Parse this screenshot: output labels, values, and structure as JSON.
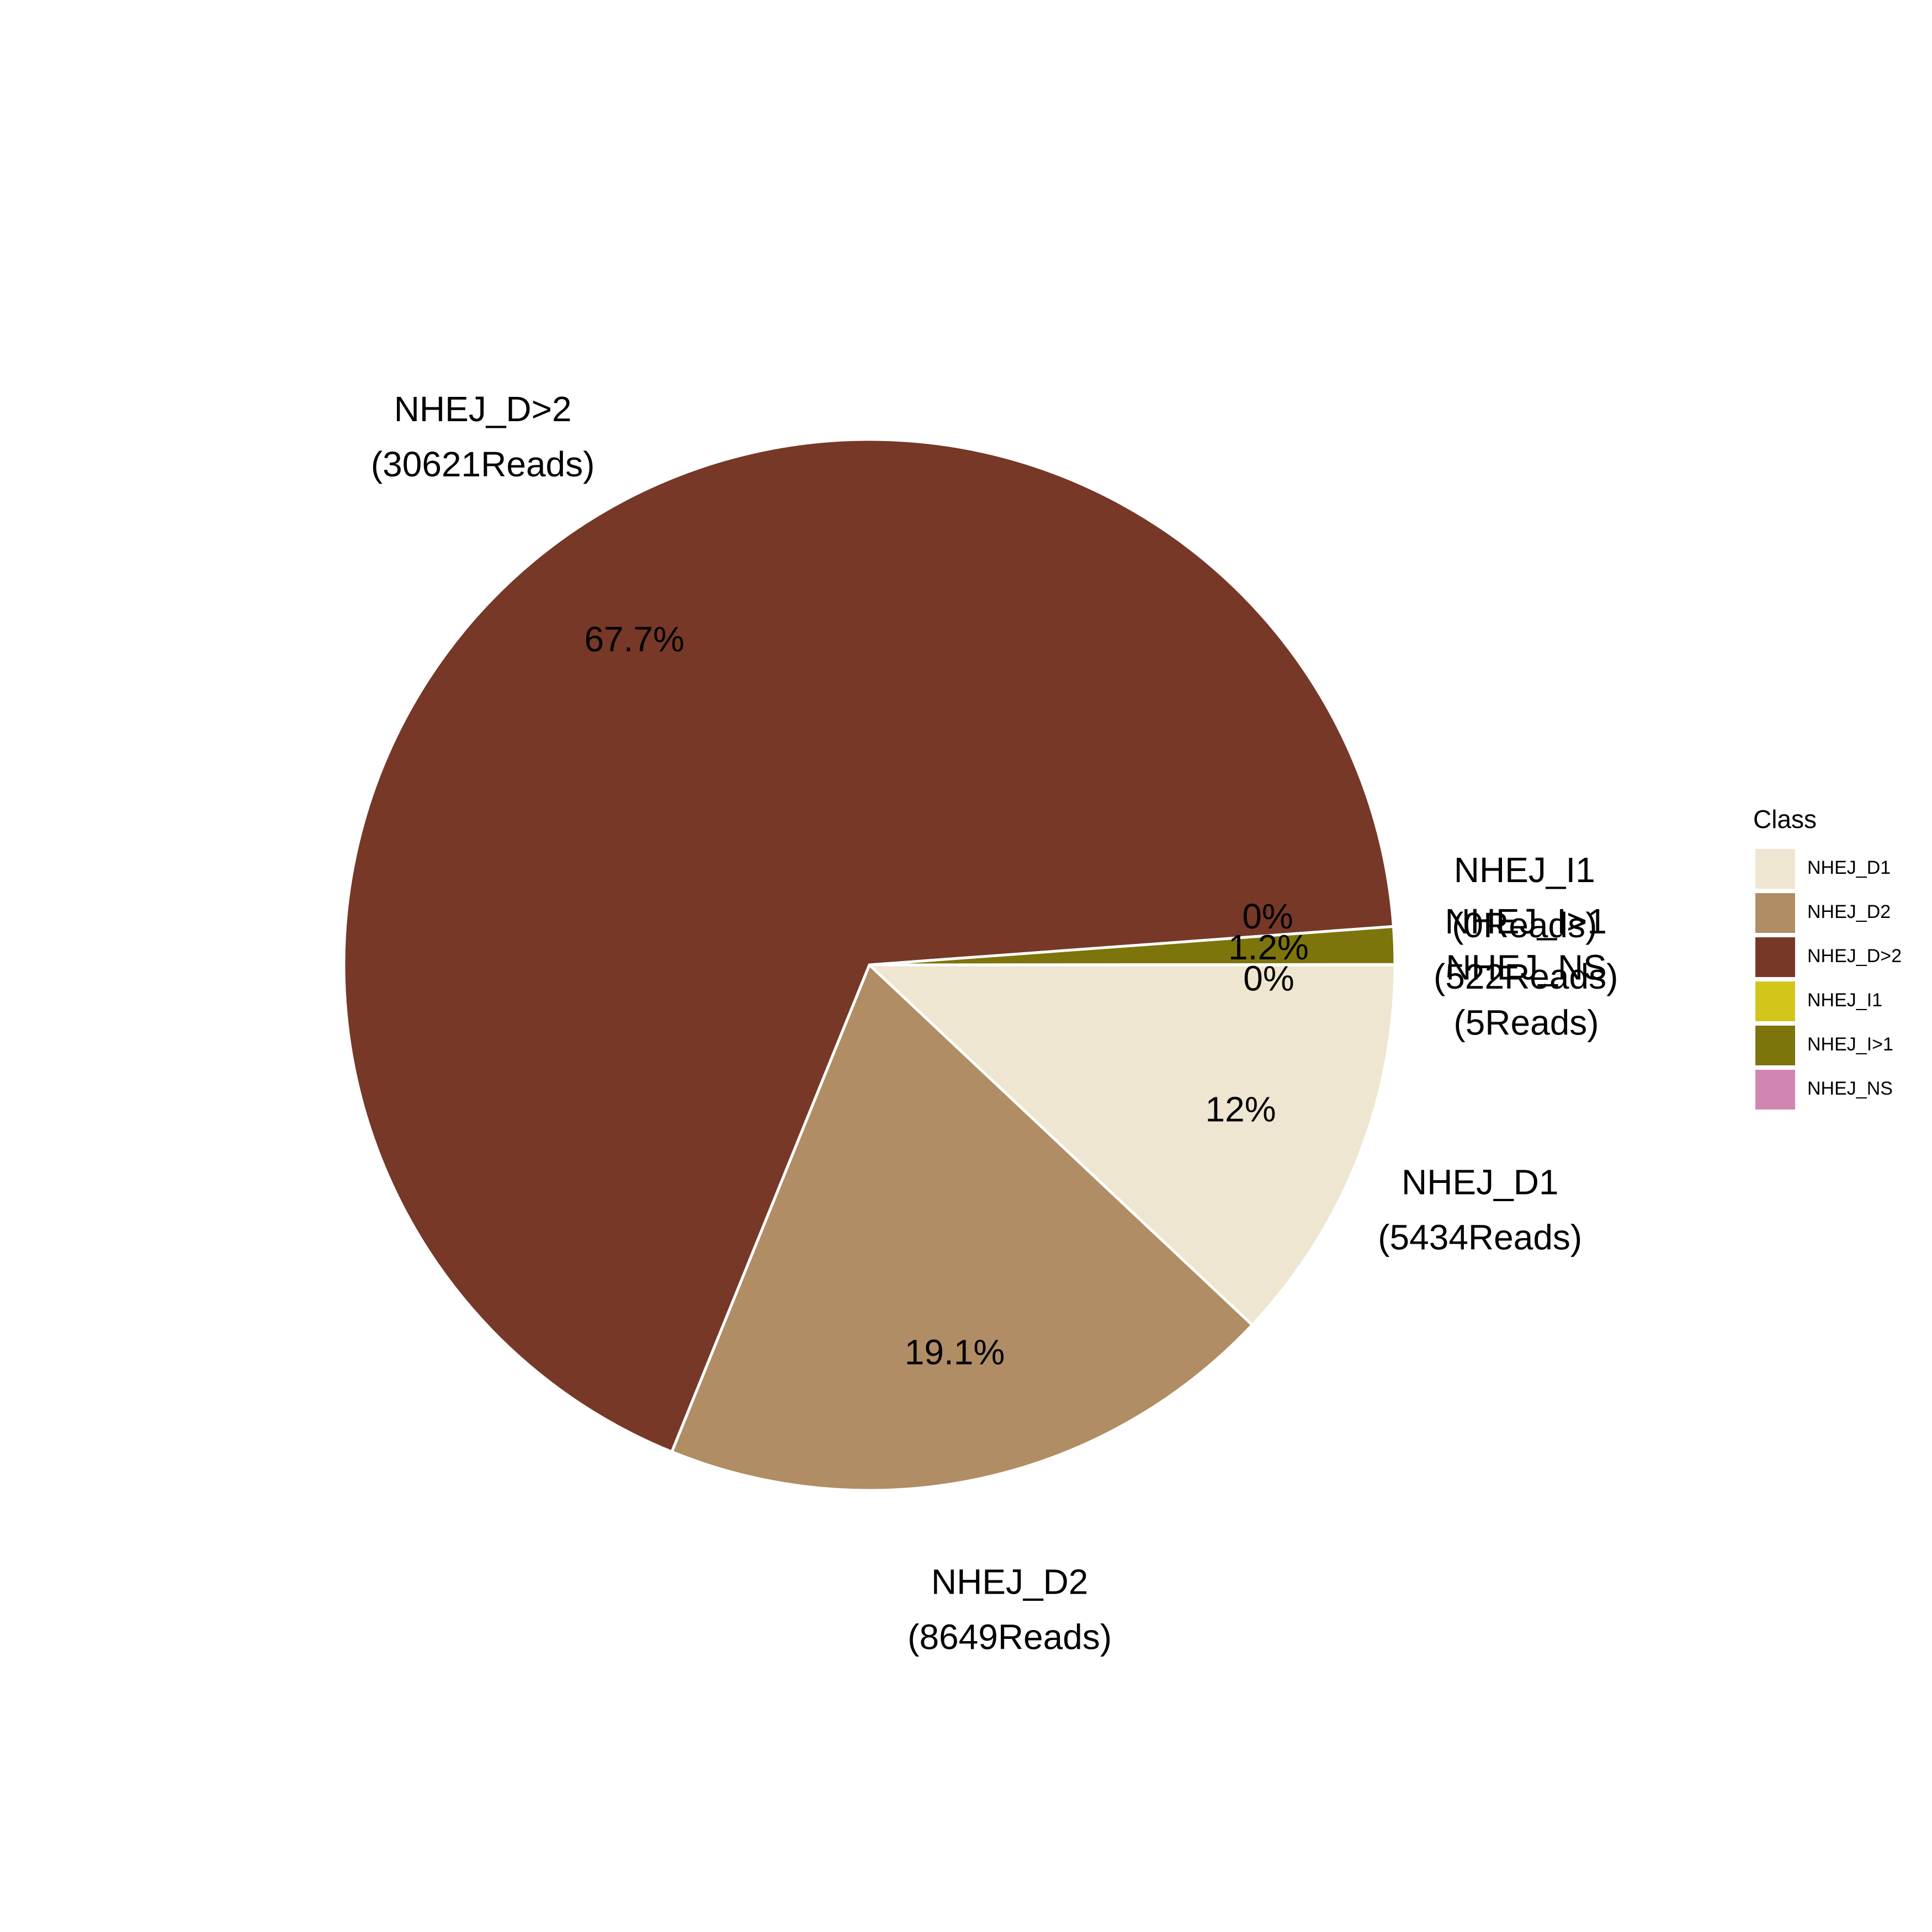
{
  "chart_data": {
    "type": "pie",
    "categories": [
      "NHEJ_D1",
      "NHEJ_D2",
      "NHEJ_D>2",
      "NHEJ_I1",
      "NHEJ_I>1",
      "NHEJ_NS"
    ],
    "values": [
      5434,
      8649,
      30621,
      0,
      522,
      5
    ],
    "percent_labels": [
      "12%",
      "19.1%",
      "67.7%",
      "0%",
      "1.2%",
      "0%"
    ],
    "outside_labels": [
      {
        "name": "NHEJ_D1",
        "reads": "(5434Reads)"
      },
      {
        "name": "NHEJ_D2",
        "reads": "(8649Reads)"
      },
      {
        "name": "NHEJ_D>2",
        "reads": "(30621Reads)"
      },
      {
        "name": "NHEJ_I1",
        "reads": "(0Reads)"
      },
      {
        "name": "NHEJ_I>1",
        "reads": "(522Reads)"
      },
      {
        "name": "NHEJ_NS",
        "reads": "(5Reads)"
      }
    ],
    "colors": [
      "#EEE6D0",
      "#B08D64",
      "#773828",
      "#D2C61A",
      "#7D740C",
      "#D285B0"
    ],
    "legend": {
      "title": "Class",
      "position": "right",
      "items": [
        "NHEJ_D1",
        "NHEJ_D2",
        "NHEJ_D>2",
        "NHEJ_I1",
        "NHEJ_I>1",
        "NHEJ_NS"
      ]
    }
  }
}
